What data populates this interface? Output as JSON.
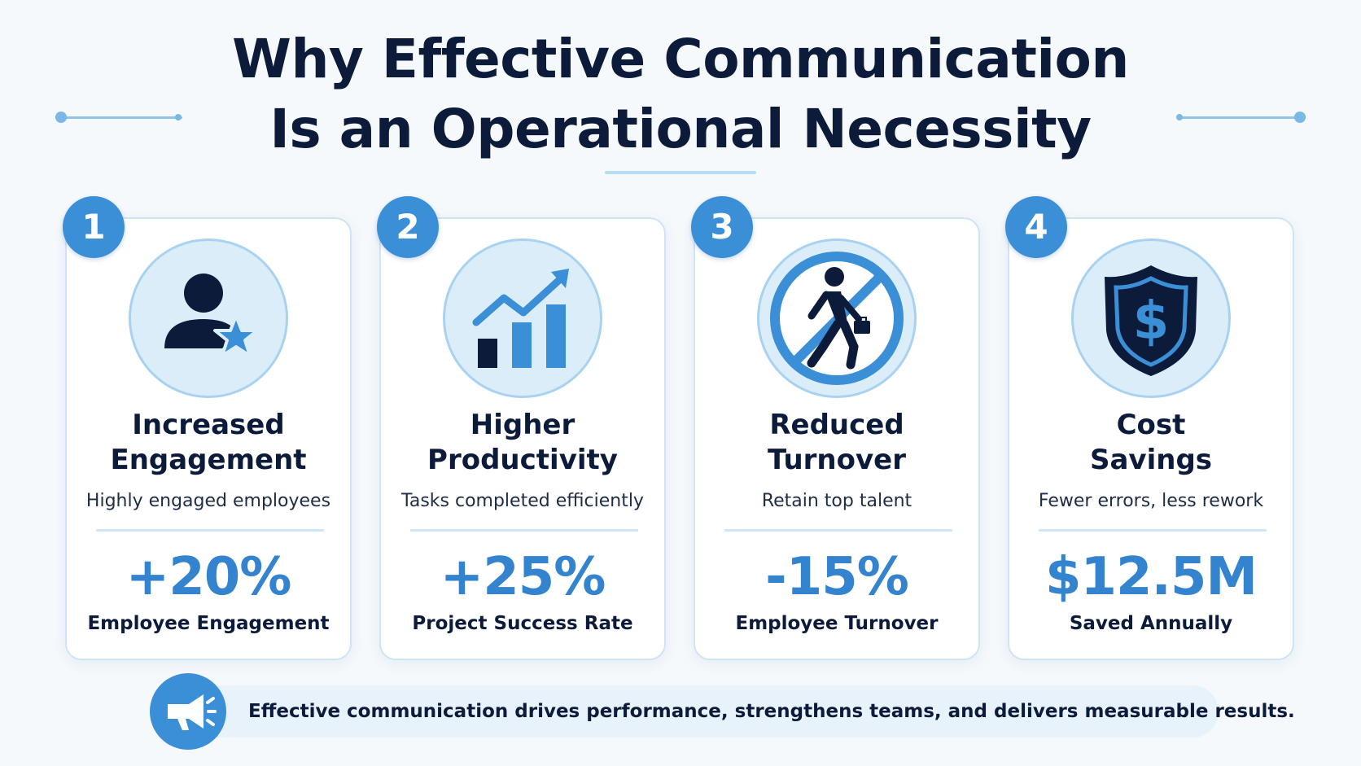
{
  "header": {
    "title_line1": "Why Effective Communication",
    "title_line2": "Is an Operational Necessity"
  },
  "cards": [
    {
      "number": "1",
      "icon": "person-star-icon",
      "title_line1": "Increased",
      "title_line2": "Engagement",
      "description": "Highly engaged employees",
      "stat": "+20%",
      "stat_label": "Employee Engagement"
    },
    {
      "number": "2",
      "icon": "growth-chart-icon",
      "title_line1": "Higher",
      "title_line2": "Productivity",
      "description": "Tasks completed efficiently",
      "stat": "+25%",
      "stat_label": "Project Success Rate"
    },
    {
      "number": "3",
      "icon": "no-walking-away-icon",
      "title_line1": "Reduced",
      "title_line2": "Turnover",
      "description": "Retain top talent",
      "stat": "-15%",
      "stat_label": "Employee Turnover"
    },
    {
      "number": "4",
      "icon": "shield-dollar-icon",
      "title_line1": "Cost",
      "title_line2": "Savings",
      "description": "Fewer errors, less rework",
      "stat": "$12.5M",
      "stat_label": "Saved Annually"
    }
  ],
  "footer": {
    "icon": "megaphone-icon",
    "text": "Effective communication drives performance, strengthens teams, and delivers measurable results."
  },
  "colors": {
    "accent": "#3b8fd6",
    "stat": "#3483cf",
    "navy": "#0c1b3a",
    "light_blue": "#dcedfa"
  }
}
